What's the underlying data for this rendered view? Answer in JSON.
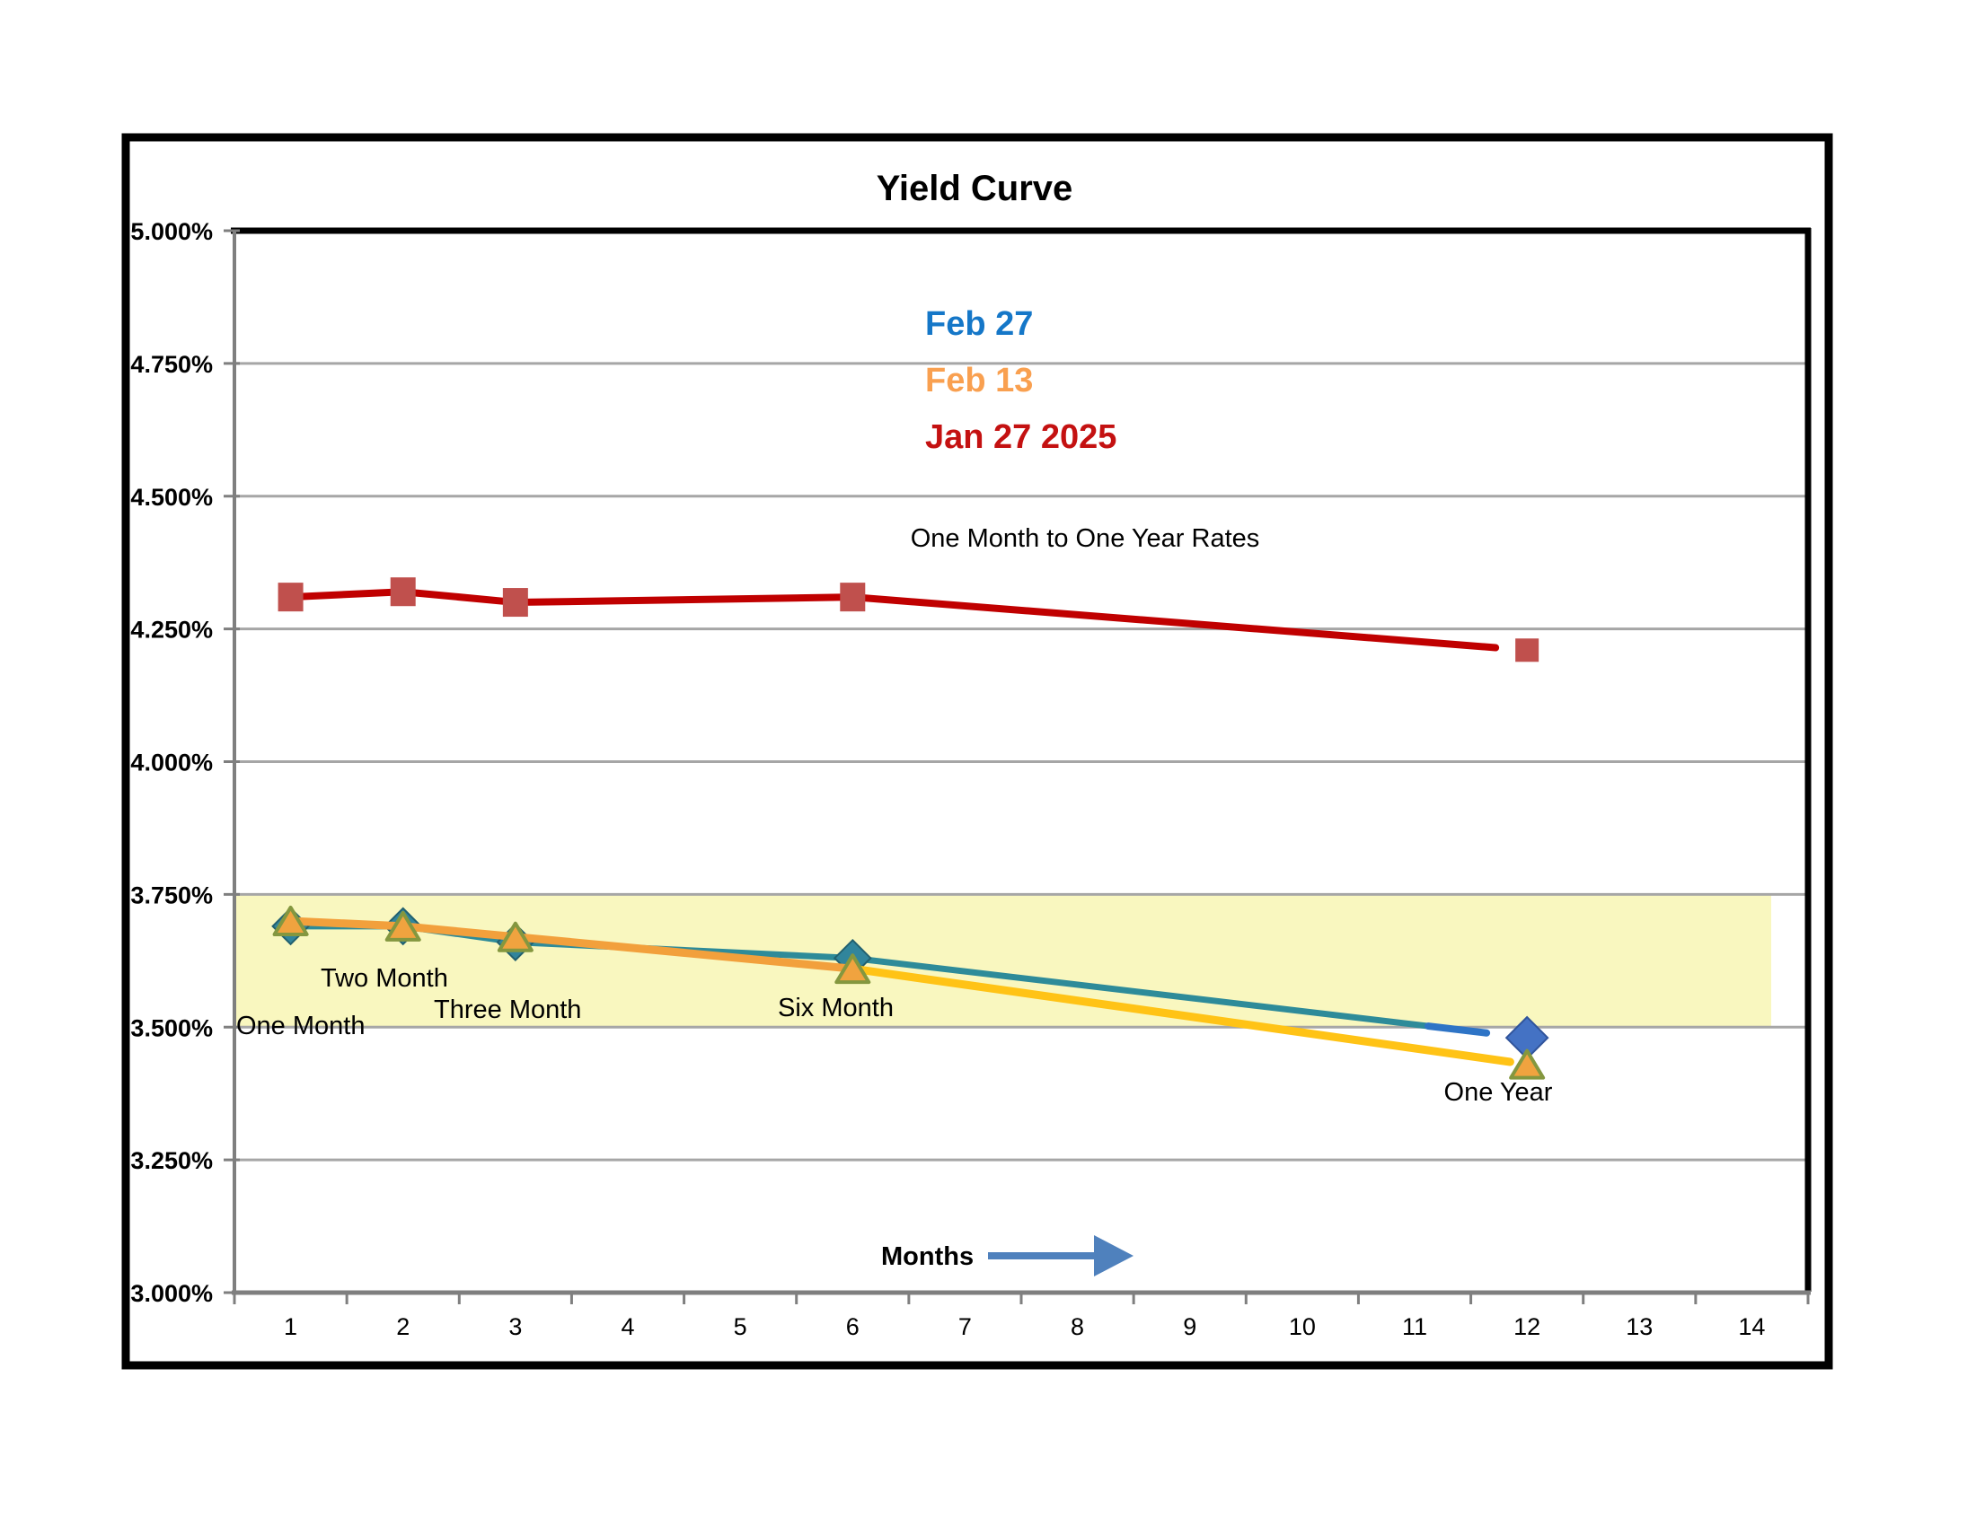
{
  "title": "Yield Curve",
  "subtitle": "One Month to One Year Rates",
  "legend": [
    {
      "label": "Feb 27",
      "color": "#1577C8"
    },
    {
      "label": "Feb 13",
      "color": "#F9A050"
    },
    {
      "label": "Jan 27 2025",
      "color": "#C41111"
    }
  ],
  "months_label": "Months",
  "annotations": {
    "one_month": "One Month",
    "two_month": "Two Month",
    "three_month": "Three Month",
    "six_month": "Six Month",
    "one_year": "One Year"
  },
  "colors": {
    "band": "#F9F7BF",
    "grid": "#A6A6A6",
    "axis": "#7F7F7F",
    "frame": "#000000",
    "feb27_line": "#2E8B99",
    "feb27_line_end": "#2E74C6",
    "feb27_marker": "#31859C",
    "feb27_marker_edge": "#22606F",
    "feb27_last_marker": "#4472C4",
    "feb27_last_marker_edge": "#30549B",
    "feb13_line": "#F2A03C",
    "feb13_line_end": "#FFC316",
    "feb13_marker_fill": "#F0A33F",
    "feb13_marker_edge": "#84973F",
    "jan27_line": "#C00000",
    "jan27_marker": "#C0504D",
    "arrow": "#4F81BD"
  },
  "chart_data": {
    "type": "line",
    "x": [
      1,
      2,
      3,
      6,
      12
    ],
    "series": [
      {
        "name": "Feb 27",
        "values": [
          3.69,
          3.69,
          3.66,
          3.63,
          3.48
        ]
      },
      {
        "name": "Feb 13",
        "values": [
          3.7,
          3.69,
          3.67,
          3.61,
          3.43
        ]
      },
      {
        "name": "Jan 27 2025",
        "values": [
          4.31,
          4.32,
          4.3,
          4.31,
          4.21
        ]
      }
    ],
    "x_tick_labels": [
      "1",
      "2",
      "3",
      "4",
      "5",
      "6",
      "7",
      "8",
      "9",
      "10",
      "11",
      "12",
      "13",
      "14"
    ],
    "y_tick_labels": [
      "5.000%",
      "4.750%",
      "4.500%",
      "4.250%",
      "4.000%",
      "3.750%",
      "3.500%",
      "3.250%",
      "3.000%"
    ],
    "xlim": [
      0,
      14
    ],
    "ylim": [
      3.0,
      5.0
    ],
    "y_step": 0.25,
    "grid": true,
    "legend_position": "inside-top-center",
    "highlight_band": {
      "y_from": 3.5,
      "y_to": 3.75
    }
  }
}
